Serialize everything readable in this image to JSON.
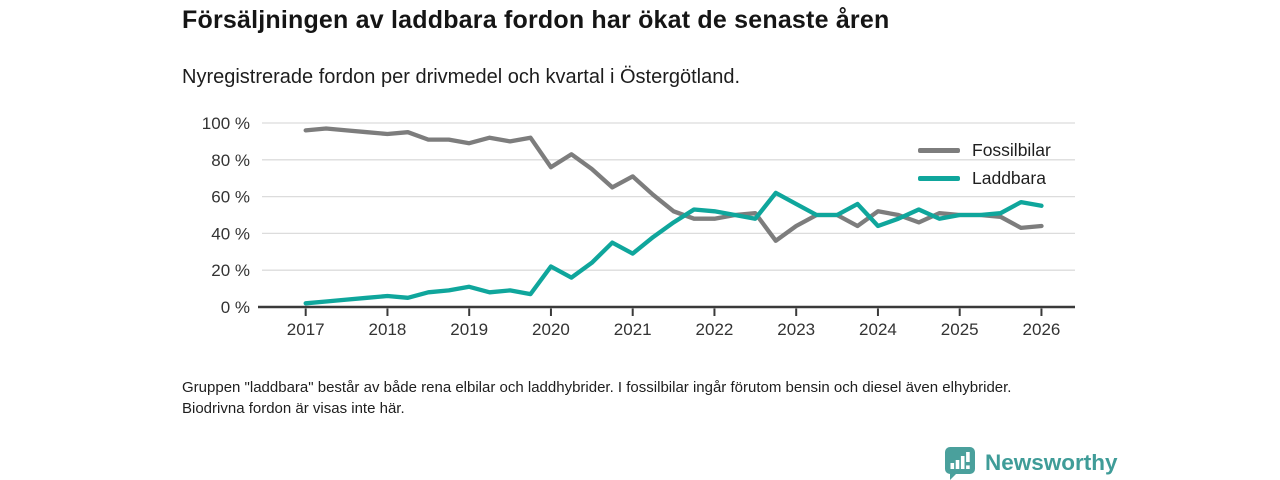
{
  "header": {
    "title": "Försäljningen av laddbara fordon har ökat de senaste åren",
    "subtitle": "Nyregistrerade fordon per drivmedel och kvartal i Östergötland."
  },
  "chart_data": {
    "type": "line",
    "title": "Nyregistrerade fordon per drivmedel och kvartal i Östergötland",
    "x_unit": "quarter",
    "categories": [
      "2017Q1",
      "2017Q2",
      "2017Q3",
      "2017Q4",
      "2018Q1",
      "2018Q2",
      "2018Q3",
      "2018Q4",
      "2019Q1",
      "2019Q2",
      "2019Q3",
      "2019Q4",
      "2020Q1",
      "2020Q2",
      "2020Q3",
      "2020Q4",
      "2021Q1",
      "2021Q2",
      "2021Q3",
      "2021Q4",
      "2022Q1",
      "2022Q2",
      "2022Q3",
      "2022Q4",
      "2023Q1",
      "2023Q2",
      "2023Q3",
      "2023Q4",
      "2024Q1",
      "2024Q2",
      "2024Q3",
      "2024Q4",
      "2025Q1",
      "2025Q2",
      "2025Q3",
      "2025Q4",
      "2026Q1"
    ],
    "series": [
      {
        "name": "Fossilbilar",
        "color": "#7d7d7d",
        "values": [
          96,
          97,
          96,
          95,
          94,
          95,
          91,
          91,
          89,
          92,
          90,
          92,
          76,
          83,
          75,
          65,
          71,
          61,
          52,
          48,
          48,
          50,
          51,
          36,
          44,
          50,
          50,
          44,
          52,
          50,
          46,
          51,
          50,
          50,
          49,
          43,
          44
        ]
      },
      {
        "name": "Laddbara",
        "color": "#0fa69c",
        "values": [
          2,
          3,
          4,
          5,
          6,
          5,
          8,
          9,
          11,
          8,
          9,
          7,
          22,
          16,
          24,
          35,
          29,
          38,
          46,
          53,
          52,
          50,
          48,
          62,
          56,
          50,
          50,
          56,
          44,
          48,
          53,
          48,
          50,
          50,
          51,
          57,
          55
        ]
      }
    ],
    "x_tick_labels": [
      "2017",
      "2018",
      "2019",
      "2020",
      "2021",
      "2022",
      "2023",
      "2024",
      "2025",
      "2026"
    ],
    "y_tick_labels": [
      "0 %",
      "20 %",
      "40 %",
      "60 %",
      "80 %",
      "100 %"
    ],
    "ylim": [
      0,
      100
    ],
    "y_tick_step": 20,
    "grid": "horizontal",
    "legend_position": "top-right"
  },
  "footnote": "Gruppen \"laddbara\" består av både rena elbilar och laddhybrider. I fossilbilar ingår förutom bensin och diesel även elhybrider. Biodrivna fordon är visas inte här.",
  "branding": {
    "logo_text": "Newsworthy",
    "brand_color": "#3f9c98",
    "logo_icon": "bar-chart-pin-icon"
  }
}
